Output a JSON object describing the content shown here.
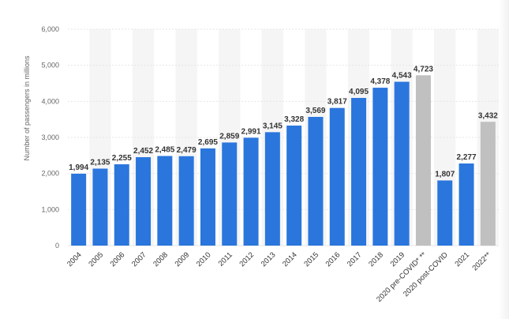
{
  "chart_data": {
    "type": "bar",
    "title": "",
    "xlabel": "",
    "ylabel": "Number of passengers in millions",
    "ylim": [
      0,
      6000
    ],
    "yticks": [
      0,
      1000,
      2000,
      3000,
      4000,
      5000,
      6000
    ],
    "ytick_labels": [
      "0",
      "1,000",
      "2,000",
      "3,000",
      "4,000",
      "5,000",
      "6,000"
    ],
    "grid": true,
    "legend": "none",
    "colors": {
      "actual": "#2a76dd",
      "projected": "#c0c0c0",
      "band": "#f5f5f5",
      "grid": "#e6e6e6"
    },
    "categories": [
      "2004",
      "2005",
      "2006",
      "2007",
      "2008",
      "2009",
      "2010",
      "2011",
      "2012",
      "2013",
      "2014",
      "2015",
      "2016",
      "2017",
      "2018",
      "2019",
      "2020 pre-COVID* **",
      "2020 post-COVID",
      "2021",
      "2022**"
    ],
    "values": [
      1994,
      2135,
      2255,
      2452,
      2485,
      2479,
      2695,
      2859,
      2991,
      3145,
      3328,
      3569,
      3817,
      4095,
      4378,
      4543,
      4723,
      1807,
      2277,
      3432
    ],
    "value_labels": [
      "1,994",
      "2,135",
      "2,255",
      "2,452",
      "2,485",
      "2,479",
      "2,695",
      "2,859",
      "2,991",
      "3,145",
      "3,328",
      "3,569",
      "3,817",
      "4,095",
      "4,378",
      "4,543",
      "4,723",
      "1,807",
      "2,277",
      "3,432"
    ],
    "bar_kind": [
      "actual",
      "actual",
      "actual",
      "actual",
      "actual",
      "actual",
      "actual",
      "actual",
      "actual",
      "actual",
      "actual",
      "actual",
      "actual",
      "actual",
      "actual",
      "actual",
      "projected",
      "actual",
      "actual",
      "projected"
    ]
  }
}
